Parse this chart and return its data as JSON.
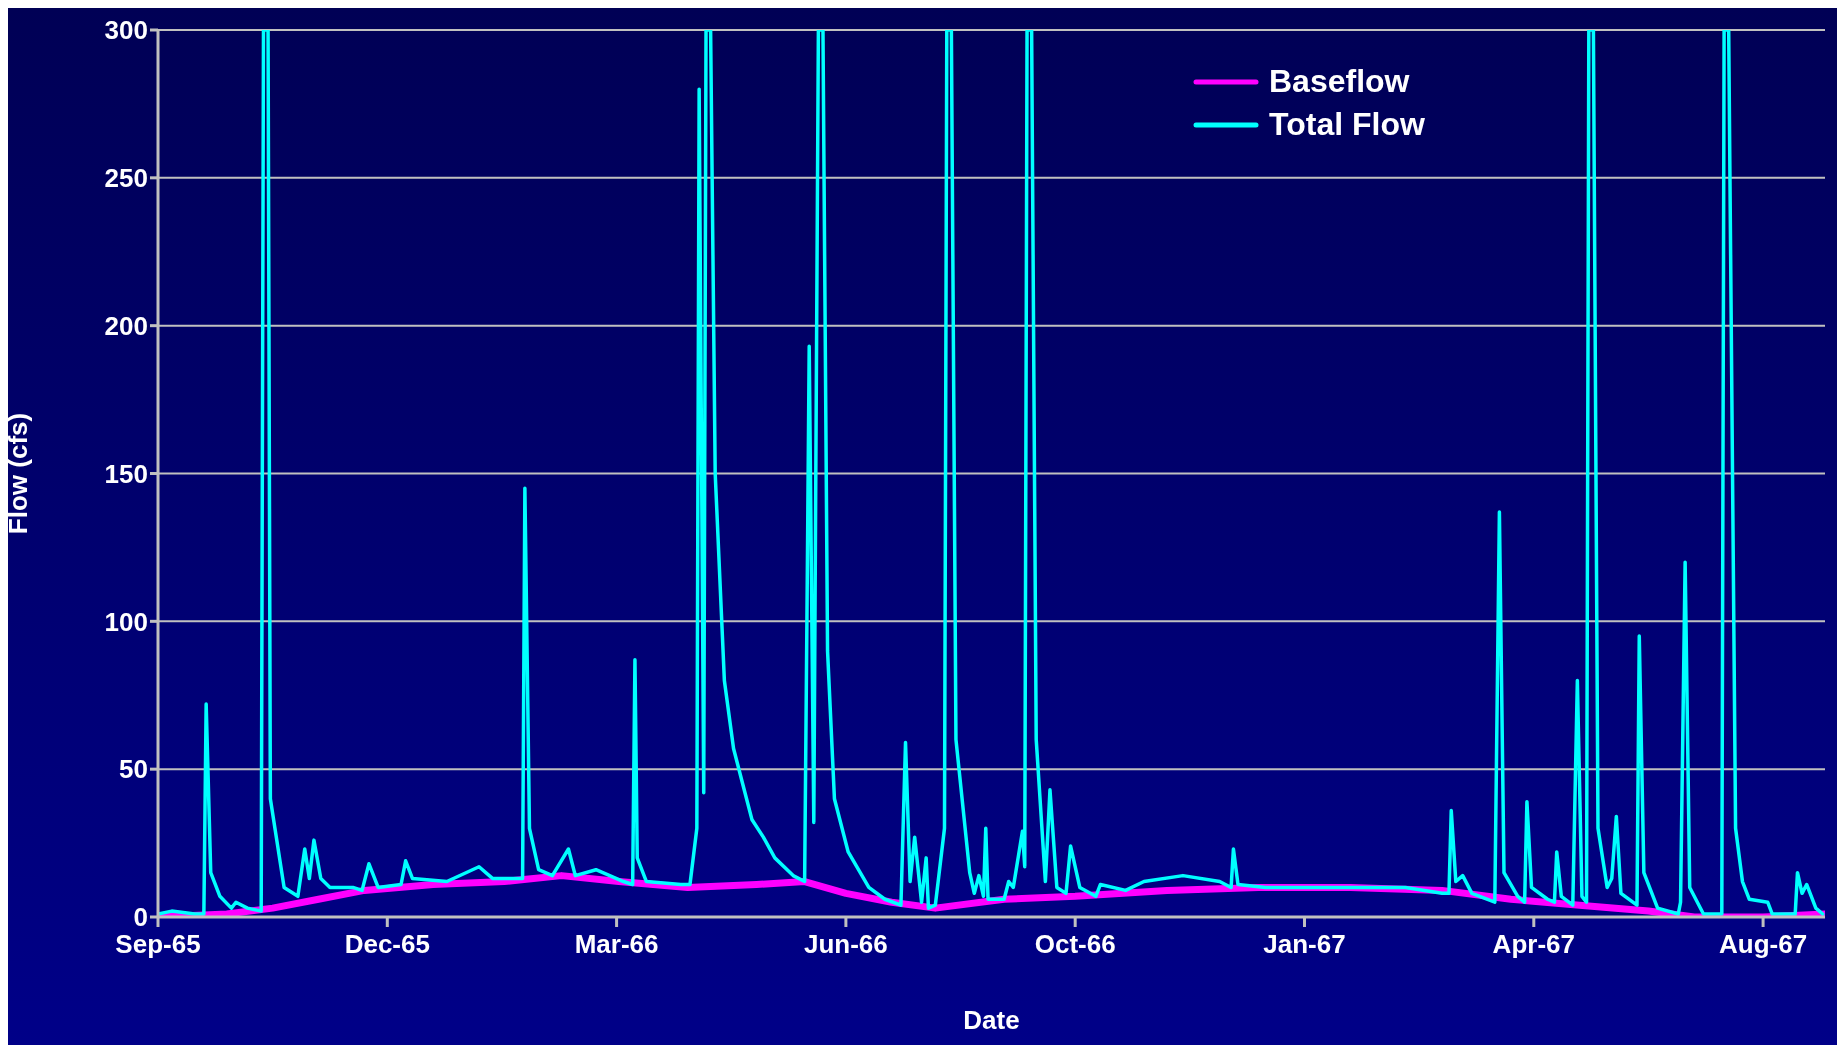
{
  "chart_data": {
    "type": "line",
    "xlabel": "Date",
    "ylabel": "Flow (cfs)",
    "xlim": [
      "1965-09-01",
      "1967-08-29"
    ],
    "xticks": [
      {
        "value": "1965-09-01",
        "label": "Sep-65"
      },
      {
        "value": "1965-12-10",
        "label": "Dec-65"
      },
      {
        "value": "1966-03-20",
        "label": "Mar-66"
      },
      {
        "value": "1966-06-28",
        "label": "Jun-66"
      },
      {
        "value": "1966-10-06",
        "label": "Oct-66"
      },
      {
        "value": "1967-01-14",
        "label": "Jan-67"
      },
      {
        "value": "1967-04-24",
        "label": "Apr-67"
      },
      {
        "value": "1967-08-02",
        "label": "Aug-67"
      }
    ],
    "ylim": [
      0,
      300
    ],
    "yticks": [
      0,
      50,
      100,
      150,
      200,
      250,
      300
    ],
    "grid": "y",
    "legend": "top right",
    "marker": "none",
    "line_style": "solid",
    "series": [
      {
        "name": "Baseflow",
        "color": "#ff00ff",
        "x": [
          "1965-09-01",
          "1965-10-01",
          "1965-10-21",
          "1965-11-10",
          "1965-11-30",
          "1965-12-30",
          "1966-01-30",
          "1966-02-24",
          "1966-03-21",
          "1966-04-20",
          "1966-05-20",
          "1966-06-10",
          "1966-06-28",
          "1966-07-18",
          "1966-08-06",
          "1966-09-05",
          "1966-10-06",
          "1966-11-15",
          "1966-12-25",
          "1967-02-03",
          "1967-03-15",
          "1967-04-14",
          "1967-05-14",
          "1967-06-13",
          "1967-07-03",
          "1967-08-02",
          "1967-08-29"
        ],
        "values": [
          0,
          1,
          3,
          6,
          9,
          11,
          12,
          14,
          12,
          10,
          11,
          12,
          8,
          5,
          3,
          6,
          7,
          9,
          10,
          10,
          9,
          6,
          4,
          2,
          0,
          0,
          1
        ]
      },
      {
        "name": "Total Flow",
        "color": "#00ffff",
        "x": [
          "1965-09-01",
          "1965-09-07",
          "1965-09-17",
          "1965-09-21",
          "1965-09-22",
          "1965-09-24",
          "1965-09-28",
          "1965-10-03",
          "1965-10-05",
          "1965-10-10",
          "1965-10-16",
          "1965-10-17",
          "1965-10-19",
          "1965-10-20",
          "1965-10-26",
          "1965-11-01",
          "1965-11-04",
          "1965-11-06",
          "1965-11-08",
          "1965-11-11",
          "1965-11-15",
          "1965-11-25",
          "1965-11-29",
          "1965-12-02",
          "1965-12-06",
          "1965-12-16",
          "1965-12-18",
          "1965-12-21",
          "1966-01-05",
          "1966-01-19",
          "1966-01-25",
          "1966-02-07",
          "1966-02-08",
          "1966-02-10",
          "1966-02-14",
          "1966-02-20",
          "1966-02-27",
          "1966-03-02",
          "1966-03-11",
          "1966-03-23",
          "1966-03-27",
          "1966-03-28",
          "1966-03-29",
          "1966-04-02",
          "1966-04-17",
          "1966-04-21",
          "1966-04-24",
          "1966-04-25",
          "1966-04-27",
          "1966-04-28",
          "1966-04-30",
          "1966-05-02",
          "1966-05-06",
          "1966-05-10",
          "1966-05-14",
          "1966-05-18",
          "1966-05-23",
          "1966-05-28",
          "1966-06-05",
          "1966-06-10",
          "1966-06-11",
          "1966-06-12",
          "1966-06-14",
          "1966-06-16",
          "1966-06-18",
          "1966-06-20",
          "1966-06-23",
          "1966-06-29",
          "1966-07-08",
          "1966-07-15",
          "1966-07-22",
          "1966-07-24",
          "1966-07-26",
          "1966-07-28",
          "1966-07-31",
          "1966-08-02",
          "1966-08-03",
          "1966-08-06",
          "1966-08-10",
          "1966-08-11",
          "1966-08-13",
          "1966-08-15",
          "1966-08-21",
          "1966-08-23",
          "1966-08-25",
          "1966-08-27",
          "1966-08-28",
          "1966-08-29",
          "1966-09-05",
          "1966-09-07",
          "1966-09-09",
          "1966-09-13",
          "1966-09-14",
          "1966-09-15",
          "1966-09-17",
          "1966-09-19",
          "1966-09-23",
          "1966-09-25",
          "1966-09-28",
          "1966-10-02",
          "1966-10-04",
          "1966-10-08",
          "1966-10-15",
          "1966-10-17",
          "1966-10-28",
          "1966-11-05",
          "1966-11-22",
          "1966-12-08",
          "1966-12-13",
          "1966-12-14",
          "1966-12-16",
          "1966-12-28",
          "1967-01-28",
          "1967-02-27",
          "1967-03-15",
          "1967-03-18",
          "1967-03-19",
          "1967-03-21",
          "1967-03-24",
          "1967-03-28",
          "1967-04-07",
          "1967-04-09",
          "1967-04-11",
          "1967-04-17",
          "1967-04-20",
          "1967-04-21",
          "1967-04-23",
          "1967-04-30",
          "1967-05-03",
          "1967-05-04",
          "1967-05-06",
          "1967-05-11",
          "1967-05-13",
          "1967-05-15",
          "1967-05-17",
          "1967-05-18",
          "1967-05-20",
          "1967-05-22",
          "1967-05-26",
          "1967-05-28",
          "1967-05-30",
          "1967-06-01",
          "1967-06-08",
          "1967-06-09",
          "1967-06-11",
          "1967-06-17",
          "1967-06-26",
          "1967-06-27",
          "1967-06-29",
          "1967-07-01",
          "1967-07-07",
          "1967-07-15",
          "1967-07-16",
          "1967-07-18",
          "1967-07-21",
          "1967-07-24",
          "1967-07-27",
          "1967-08-04",
          "1967-08-06",
          "1967-08-16",
          "1967-08-17",
          "1967-08-19",
          "1967-08-21",
          "1967-08-25",
          "1967-08-28"
        ],
        "values": [
          1,
          2,
          1,
          1,
          72,
          15,
          7,
          3,
          5,
          3,
          2,
          300,
          300,
          40,
          10,
          7,
          23,
          13,
          26,
          13,
          10,
          10,
          9,
          18,
          10,
          11,
          19,
          13,
          12,
          17,
          13,
          13,
          145,
          30,
          16,
          14,
          23,
          14,
          16,
          12,
          11,
          87,
          20,
          12,
          11,
          11,
          30,
          280,
          42,
          300,
          300,
          150,
          80,
          57,
          45,
          33,
          27,
          20,
          14,
          12,
          100,
          193,
          32,
          300,
          300,
          90,
          40,
          22,
          10,
          6,
          4,
          59,
          12,
          27,
          5,
          20,
          3,
          4,
          30,
          300,
          300,
          60,
          15,
          8,
          14,
          7,
          30,
          6,
          6,
          12,
          10,
          29,
          17,
          300,
          300,
          60,
          12,
          43,
          10,
          8,
          24,
          10,
          7,
          11,
          9,
          12,
          14,
          12,
          10,
          23,
          11,
          10,
          10,
          10,
          8,
          8,
          36,
          12,
          14,
          8,
          5,
          137,
          15,
          7,
          5,
          39,
          10,
          6,
          5,
          22,
          7,
          4,
          80,
          7,
          5,
          300,
          300,
          30,
          10,
          13,
          34,
          8,
          4,
          95,
          15,
          3,
          1,
          5,
          120,
          10,
          1,
          1,
          300,
          300,
          30,
          12,
          6,
          5,
          1,
          1,
          15,
          8,
          11,
          3,
          1
        ]
      }
    ]
  }
}
